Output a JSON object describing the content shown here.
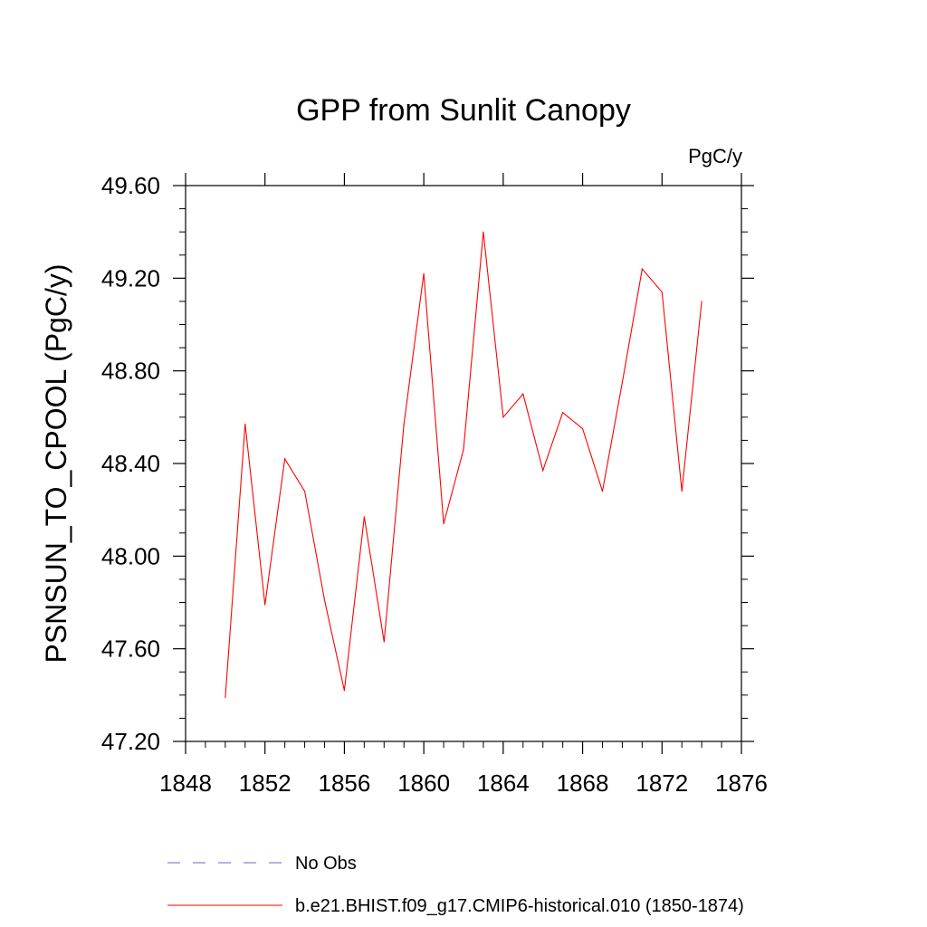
{
  "chart_data": {
    "type": "line",
    "title": "GPP from Sunlit Canopy",
    "units_label": "PgC/y",
    "xlabel": "",
    "ylabel": "PSNSUN_TO_CPOOL  (PgC/y)",
    "xlim": [
      1848,
      1876
    ],
    "ylim": [
      47.2,
      49.6
    ],
    "xticks": [
      1848,
      1852,
      1856,
      1860,
      1864,
      1868,
      1872,
      1876
    ],
    "xtick_labels": [
      "1848",
      "1852",
      "1856",
      "1860",
      "1864",
      "1868",
      "1872",
      "1876"
    ],
    "yticks": [
      47.2,
      47.6,
      48.0,
      48.4,
      48.8,
      49.2,
      49.6
    ],
    "ytick_labels": [
      "47.20",
      "47.60",
      "48.00",
      "48.40",
      "48.80",
      "49.20",
      "49.60"
    ],
    "x_minor_step": 1,
    "y_minor_step": 0.1,
    "grid": false,
    "legend_position": "bottom",
    "series": [
      {
        "name": "b.e21.BHIST.f09_g17.CMIP6-historical.010 (1850-1874)",
        "color": "#ff0000",
        "dash": "solid",
        "x": [
          1850,
          1851,
          1852,
          1853,
          1854,
          1855,
          1856,
          1857,
          1858,
          1859,
          1860,
          1861,
          1862,
          1863,
          1864,
          1865,
          1866,
          1867,
          1868,
          1869,
          1870,
          1871,
          1872,
          1873,
          1874
        ],
        "y": [
          47.39,
          48.57,
          47.79,
          48.42,
          48.28,
          47.81,
          47.42,
          48.17,
          47.63,
          48.57,
          49.22,
          48.14,
          48.46,
          49.4,
          48.6,
          48.7,
          48.37,
          48.62,
          48.55,
          48.28,
          48.75,
          49.24,
          49.14,
          48.28,
          49.1
        ]
      }
    ],
    "legend": [
      {
        "label": "No Obs",
        "color": "#6666cc",
        "dash": "dashed"
      },
      {
        "label": "b.e21.BHIST.f09_g17.CMIP6-historical.010 (1850-1874)",
        "color": "#ff0000",
        "dash": "solid"
      }
    ]
  }
}
